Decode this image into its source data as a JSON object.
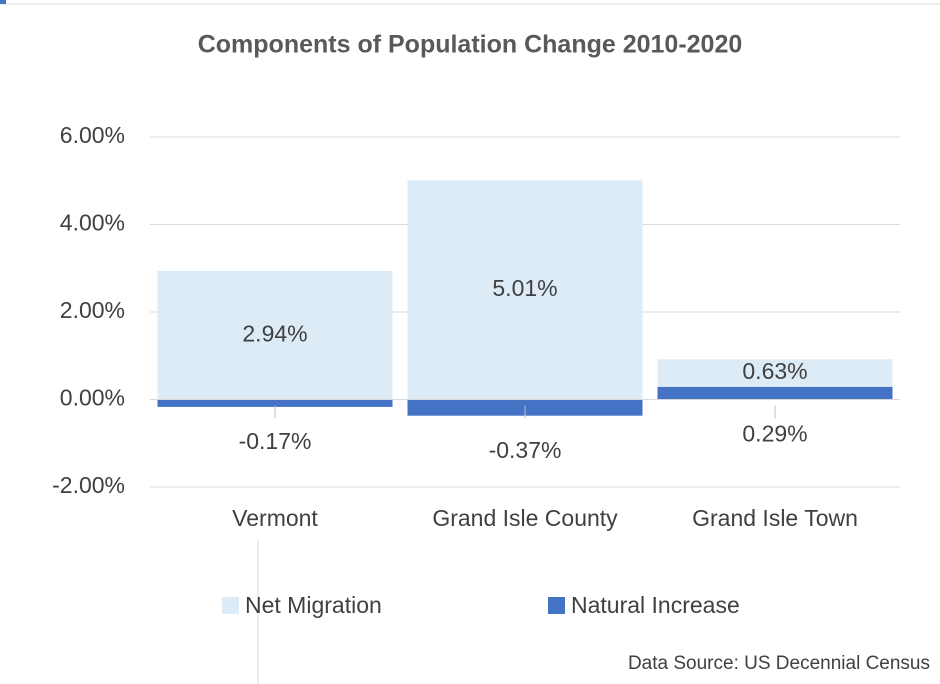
{
  "chart_data": {
    "type": "stacked_bar",
    "title": "Components of Population Change 2010-2020",
    "categories": [
      "Vermont",
      "Grand Isle County",
      "Grand Isle Town"
    ],
    "series": [
      {
        "name": "Net Migration",
        "color": "#ddebf7",
        "values": [
          2.94,
          5.01,
          0.63
        ],
        "value_labels": [
          "2.94%",
          "5.01%",
          "0.63%"
        ]
      },
      {
        "name": "Natural Increase",
        "color": "#4472c4",
        "values": [
          -0.17,
          -0.37,
          0.29
        ],
        "value_labels": [
          "-0.17%",
          "-0.37%",
          "0.29%"
        ]
      }
    ],
    "ylim": [
      -2,
      6
    ],
    "yticks": [
      {
        "value": -2,
        "label": "-2.00%"
      },
      {
        "value": 0,
        "label": "0.00%"
      },
      {
        "value": 2,
        "label": "2.00%"
      },
      {
        "value": 4,
        "label": "4.00%"
      },
      {
        "value": 6,
        "label": "6.00%"
      }
    ],
    "grid": true,
    "legend": "bottom",
    "source": "Data Source: US Decennial Census"
  }
}
